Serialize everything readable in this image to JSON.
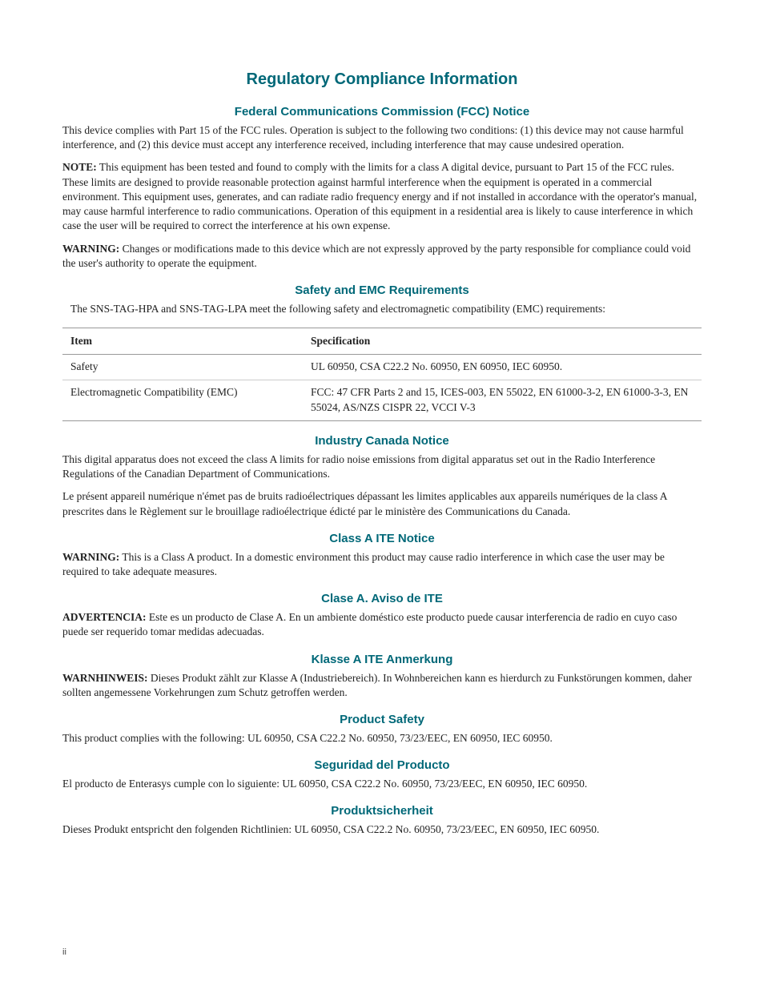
{
  "colors": {
    "heading": "#006878",
    "body_text": "#222222",
    "table_border_strong": "#999999",
    "table_border_light": "#cccccc",
    "background": "#ffffff"
  },
  "typography": {
    "heading_font": "Arial",
    "body_font": "Palatino",
    "main_title_size_pt": 20,
    "section_title_size_pt": 15,
    "body_size_pt": 13.5
  },
  "main_title": "Regulatory Compliance Information",
  "fcc": {
    "title": "Federal Communications Commission (FCC) Notice",
    "para1": "This device complies with Part 15 of the FCC rules. Operation is subject to the following two conditions: (1) this device may not cause harmful interference, and (2) this device must accept any interference received, including interference that may cause undesired operation.",
    "note_label": "NOTE:",
    "note_text": "  This equipment has been tested and found to comply with the limits for a class A digital device, pursuant to Part 15 of the FCC rules. These limits are designed to provide reasonable protection against harmful interference when the equipment is operated in a commercial environment. This equipment uses, generates, and can radiate radio frequency energy and if not installed in accordance with the operator's manual, may cause harmful interference to radio communications. Operation of this equipment in a residential area is likely to cause interference in which case the user will be required to correct the interference at his own expense.",
    "warning_label": "WARNING:",
    "warning_text": "  Changes or modifications made to this device which are not expressly approved by the party responsible for compliance could void the user's authority to operate the equipment."
  },
  "safety_emc": {
    "title": "Safety and EMC Requirements",
    "intro": "The SNS-TAG-HPA and SNS-TAG-LPA meet the following safety and electromagnetic compatibility (EMC) requirements:",
    "table": {
      "columns": [
        "Item",
        "Specification"
      ],
      "rows": [
        [
          "Safety",
          "UL 60950, CSA C22.2 No. 60950, EN 60950, IEC 60950."
        ],
        [
          "Electromagnetic Compatibility (EMC)",
          "FCC: 47 CFR Parts 2 and 15, ICES-003, EN 55022, EN 61000-3-2, EN 61000-3-3, EN 55024, AS/NZS CISPR 22, VCCI V-3"
        ]
      ]
    }
  },
  "industry_canada": {
    "title": "Industry Canada Notice",
    "para_en": "This digital apparatus does not exceed the class A limits for radio noise emissions from digital apparatus set out in the Radio Interference Regulations of the Canadian Department of Communications.",
    "para_fr": "Le présent appareil numérique n'émet pas de bruits radioélectriques dépassant les limites applicables aux appareils numériques de la class A prescrites dans le Règlement sur le brouillage radioélectrique édicté par le ministère des Communications du Canada."
  },
  "class_a_ite": {
    "title": "Class A ITE Notice",
    "label": "WARNING:",
    "text": "  This is a Class A product. In a domestic environment this product may cause radio interference in which case the user may be required to take adequate measures."
  },
  "clase_a": {
    "title": "Clase A. Aviso de ITE",
    "label": "ADVERTENCIA:",
    "text": " Este es un producto de Clase A. En un ambiente doméstico este producto puede causar interferencia de radio en cuyo caso puede ser requerido tomar medidas adecuadas."
  },
  "klasse_a": {
    "title": "Klasse A ITE Anmerkung",
    "label": "WARNHINWEIS:",
    "text": " Dieses Produkt zählt zur Klasse A (Industriebereich). In Wohnbereichen kann es hierdurch zu Funkstörungen kommen, daher sollten angemessene Vorkehrungen zum Schutz getroffen werden."
  },
  "product_safety": {
    "title": "Product Safety",
    "text": "This product complies with the following: UL 60950, CSA C22.2 No. 60950, 73/23/EEC, EN 60950, IEC 60950."
  },
  "seguridad": {
    "title": "Seguridad del Producto",
    "text": "El producto de Enterasys cumple con lo siguiente: UL 60950, CSA C22.2 No. 60950, 73/23/EEC, EN 60950, IEC 60950."
  },
  "produktsicherheit": {
    "title": "Produktsicherheit",
    "text": "Dieses Produkt entspricht den folgenden Richtlinien: UL 60950, CSA C22.2 No. 60950, 73/23/EEC, EN 60950, IEC 60950."
  },
  "page_number": "ii"
}
